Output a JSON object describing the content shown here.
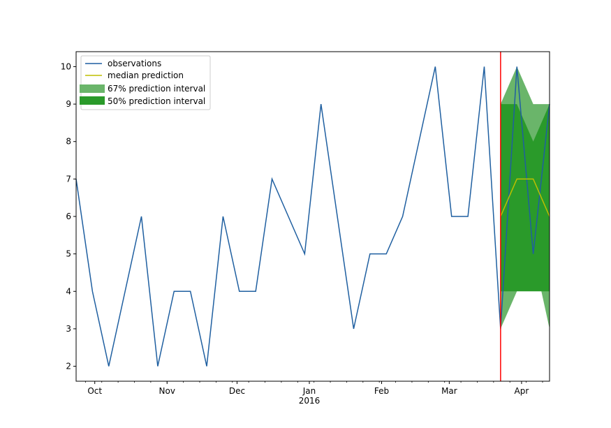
{
  "chart_data": {
    "type": "line",
    "title": "",
    "xlabel": "",
    "ylabel": "",
    "ylim": [
      1.6,
      10.4
    ],
    "x_range": [
      "2015-09-23",
      "2016-04-13"
    ],
    "yticks": [
      2,
      3,
      4,
      5,
      6,
      7,
      8,
      9,
      10
    ],
    "xticks": [
      {
        "date": "2015-10-01",
        "label": "Oct",
        "sublabel": ""
      },
      {
        "date": "2015-11-01",
        "label": "Nov",
        "sublabel": ""
      },
      {
        "date": "2015-12-01",
        "label": "Dec",
        "sublabel": ""
      },
      {
        "date": "2016-01-01",
        "label": "Jan",
        "sublabel": "2016"
      },
      {
        "date": "2016-02-01",
        "label": "Feb",
        "sublabel": ""
      },
      {
        "date": "2016-03-01",
        "label": "Mar",
        "sublabel": ""
      },
      {
        "date": "2016-04-01",
        "label": "Apr",
        "sublabel": ""
      }
    ],
    "observations": {
      "name": "observations",
      "color": "#1f5fa0",
      "dates": [
        "2015-09-23",
        "2015-09-30",
        "2015-10-07",
        "2015-10-14",
        "2015-10-21",
        "2015-10-28",
        "2015-11-04",
        "2015-11-11",
        "2015-11-18",
        "2015-11-25",
        "2015-12-02",
        "2015-12-09",
        "2015-12-16",
        "2015-12-23",
        "2015-12-30",
        "2016-01-06",
        "2016-01-13",
        "2016-01-20",
        "2016-01-27",
        "2016-02-03",
        "2016-02-10",
        "2016-02-17",
        "2016-02-24",
        "2016-03-02",
        "2016-03-09",
        "2016-03-16",
        "2016-03-23",
        "2016-03-30",
        "2016-04-06",
        "2016-04-13"
      ],
      "values": [
        7,
        4,
        2,
        4,
        6,
        2,
        4,
        4,
        2,
        6,
        4,
        4,
        7,
        6,
        5,
        9,
        6,
        3,
        5,
        5,
        6,
        8,
        10,
        6,
        6,
        10,
        3,
        10,
        5,
        9
      ]
    },
    "median_prediction": {
      "name": "median prediction",
      "color": "#bfbf00",
      "dates": [
        "2016-03-23",
        "2016-03-30",
        "2016-04-06",
        "2016-04-13"
      ],
      "values": [
        6,
        7,
        7,
        6
      ]
    },
    "interval_67": {
      "name": "67% prediction interval",
      "color": "#6ab56a",
      "dates": [
        "2016-03-23",
        "2016-03-30",
        "2016-04-06",
        "2016-04-13"
      ],
      "lower": [
        3,
        4,
        5,
        3
      ],
      "upper": [
        9,
        10,
        9,
        9
      ]
    },
    "interval_50": {
      "name": "50% prediction interval",
      "color": "#2a9a2a",
      "dates": [
        "2016-03-23",
        "2016-03-30",
        "2016-04-06",
        "2016-04-13"
      ],
      "lower": [
        4,
        4,
        4,
        4
      ],
      "upper": [
        9,
        9,
        8,
        9
      ]
    },
    "forecast_start": {
      "date": "2016-03-23",
      "color": "#ff0000"
    },
    "grid": false,
    "legend_position": "top-left"
  }
}
